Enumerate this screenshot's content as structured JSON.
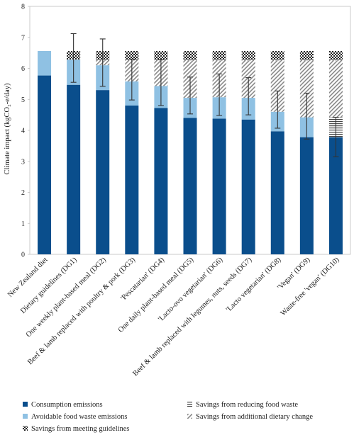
{
  "chart_data": {
    "type": "bar",
    "stacked": true,
    "ylabel": "Climate impact (kgCO₂-e/day)",
    "ylim": [
      0,
      8
    ],
    "yticks": [
      0,
      1,
      2,
      3,
      4,
      5,
      6,
      7,
      8
    ],
    "grid": false,
    "legend_position": "bottom",
    "categories": [
      "New Zealand diet",
      "Dietary guidelines (DG1)",
      "One weekly plant-based meal (DG2)",
      "Beef & lamb replaced with poultry & pork (DG3)",
      "'Pescatarian' (DG4)",
      "One daily plant-based meal (DG5)",
      "'Lacto-ovo vegetarian' (DG6)",
      "Beef & lamb replaced with legumes, nuts, seeds (DG7)",
      "'Lacto vegetarian' (DG8)",
      "'Vegan' (DG9)",
      "Waste-free 'vegan' (DG10)"
    ],
    "series": [
      {
        "name": "Consumption emissions",
        "color": "#0a4e8c",
        "pattern": "solid",
        "values": [
          5.77,
          5.47,
          5.3,
          4.8,
          4.72,
          4.4,
          4.38,
          4.35,
          3.97,
          3.78,
          3.78
        ]
      },
      {
        "name": "Avoidable food waste emissions",
        "color": "#8fc1e3",
        "pattern": "solid",
        "values": [
          0.79,
          0.81,
          0.8,
          0.78,
          0.71,
          0.65,
          0.69,
          0.7,
          0.63,
          0.64,
          0
        ]
      },
      {
        "name": "Savings from reducing food waste",
        "color": "#444444",
        "pattern": "horizontal",
        "values": [
          0,
          0,
          0,
          0,
          0,
          0,
          0,
          0,
          0,
          0,
          0.64
        ]
      },
      {
        "name": "Savings from additional dietary change",
        "color": "#888888",
        "pattern": "diagonal",
        "values": [
          0,
          0,
          0.16,
          0.68,
          0.83,
          1.21,
          1.19,
          1.21,
          1.66,
          1.84,
          1.84
        ]
      },
      {
        "name": "Savings from meeting guidelines",
        "color": "#222222",
        "pattern": "checker",
        "values": [
          0,
          0.28,
          0.3,
          0.3,
          0.3,
          0.3,
          0.3,
          0.3,
          0.3,
          0.3,
          0.3
        ]
      }
    ],
    "error_bars": [
      null,
      {
        "center": 6.28,
        "low": 5.55,
        "high": 7.12
      },
      {
        "center": 6.1,
        "low": 5.42,
        "high": 6.95
      },
      {
        "center": 5.58,
        "low": 4.98,
        "high": 6.3
      },
      {
        "center": 5.43,
        "low": 4.8,
        "high": 6.28
      },
      {
        "center": 5.05,
        "low": 4.53,
        "high": 5.72
      },
      {
        "center": 5.07,
        "low": 4.48,
        "high": 5.82
      },
      {
        "center": 5.05,
        "low": 4.5,
        "high": 5.7
      },
      {
        "center": 4.6,
        "low": 4.07,
        "high": 5.27
      },
      {
        "center": 4.42,
        "low": 3.72,
        "high": 5.2
      },
      {
        "center": 3.78,
        "low": 3.15,
        "high": 4.42
      }
    ],
    "legend": [
      {
        "label": "Consumption emissions",
        "pattern": "solid",
        "color": "#0a4e8c"
      },
      {
        "label": "Savings from reducing food waste",
        "pattern": "horizontal",
        "color": "#444444"
      },
      {
        "label": "Avoidable food waste emissions",
        "pattern": "solid",
        "color": "#8fc1e3"
      },
      {
        "label": "Savings from additional dietary change",
        "pattern": "diagonal",
        "color": "#888888"
      },
      {
        "label": "Savings from meeting guidelines",
        "pattern": "checker",
        "color": "#222222"
      }
    ]
  }
}
